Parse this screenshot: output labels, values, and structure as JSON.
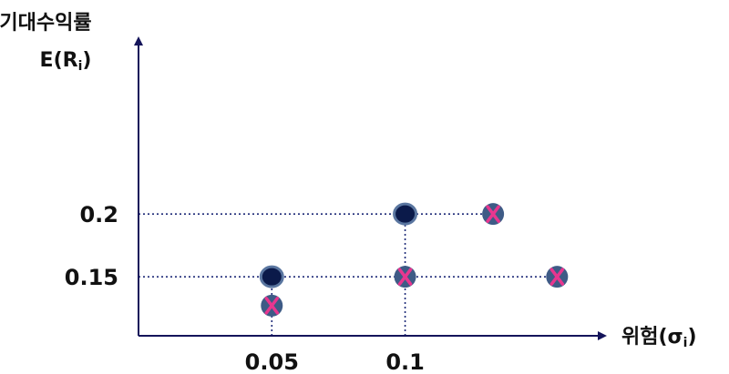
{
  "chart_data": {
    "type": "scatter",
    "ylabel_line1": "기대수익률",
    "ylabel_line2_base": "E(R",
    "ylabel_line2_sub": "i",
    "ylabel_line2_end": ")",
    "xlabel_base": "위험(σ",
    "xlabel_sub": "i",
    "xlabel_end": ")",
    "x_ticks": [
      {
        "value": 0.05,
        "label": "0.05"
      },
      {
        "value": 0.1,
        "label": "0.1"
      }
    ],
    "y_ticks": [
      {
        "value": 0.2,
        "label": "0.2"
      },
      {
        "value": 0.15,
        "label": "0.15"
      }
    ],
    "xlim": [
      0.0,
      0.175
    ],
    "ylim": [
      0.103,
      0.34
    ],
    "grid": "dotted reference lines from marked points to axes",
    "series": [
      {
        "marker": "dot",
        "points": [
          {
            "x": 0.1,
            "y": 0.2
          },
          {
            "x": 0.05,
            "y": 0.15
          }
        ]
      },
      {
        "marker": "x",
        "points": [
          {
            "x": 0.133,
            "y": 0.2
          },
          {
            "x": 0.1,
            "y": 0.15
          },
          {
            "x": 0.157,
            "y": 0.15
          },
          {
            "x": 0.05,
            "y": 0.127
          }
        ]
      }
    ],
    "colors": {
      "axis": "#14145a",
      "dot_fill": "#0b1a4a",
      "dot_ring": "#5a76a0",
      "x_bg": "#3e5b86",
      "x_mark": "#e8368f",
      "guide": "#1e2a78",
      "text": "#111111"
    }
  }
}
